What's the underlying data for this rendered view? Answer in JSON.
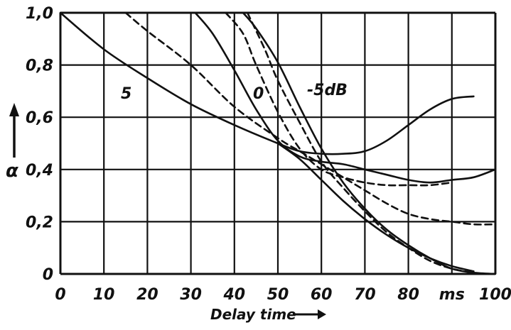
{
  "chart_data": {
    "type": "line",
    "xlabel": "Delay time",
    "ylabel": "α",
    "x_unit_label": "ms",
    "xlim": [
      0,
      100
    ],
    "ylim": [
      0,
      1.0
    ],
    "grid": true,
    "x_ticks": [
      "0",
      "10",
      "20",
      "30",
      "40",
      "50",
      "60",
      "70",
      "80",
      "ms",
      "100"
    ],
    "y_ticks": [
      "0",
      "0,2",
      "0,4",
      "0,6",
      "0,8",
      "1,0"
    ],
    "annotations": [
      "5",
      "0",
      "-5dB"
    ],
    "series": [
      {
        "name": "5",
        "style": "solid",
        "x": [
          0,
          10,
          20,
          30,
          40,
          50,
          55,
          60,
          65,
          70,
          75,
          80,
          85,
          90,
          95
        ],
        "y": [
          1.0,
          0.86,
          0.75,
          0.65,
          0.57,
          0.5,
          0.47,
          0.46,
          0.46,
          0.47,
          0.51,
          0.57,
          0.63,
          0.67,
          0.68
        ]
      },
      {
        "name": "5",
        "style": "dashed",
        "x": [
          15,
          20,
          30,
          40,
          50,
          55,
          60,
          65,
          70,
          75,
          80,
          85,
          90,
          95,
          100
        ],
        "y": [
          1.0,
          0.93,
          0.8,
          0.64,
          0.52,
          0.47,
          0.42,
          0.37,
          0.32,
          0.27,
          0.23,
          0.21,
          0.2,
          0.19,
          0.19
        ]
      },
      {
        "name": "0",
        "style": "solid",
        "x": [
          31,
          35,
          40,
          45,
          50,
          55,
          60,
          65,
          70,
          75,
          80,
          85,
          90,
          95,
          100
        ],
        "y": [
          1.0,
          0.92,
          0.78,
          0.63,
          0.51,
          0.45,
          0.43,
          0.42,
          0.4,
          0.38,
          0.36,
          0.35,
          0.36,
          0.37,
          0.4
        ]
      },
      {
        "name": "0",
        "style": "dashed",
        "x": [
          38,
          42,
          45,
          50,
          55,
          60,
          65,
          70,
          75,
          80,
          85,
          90
        ],
        "y": [
          1.0,
          0.92,
          0.8,
          0.62,
          0.48,
          0.4,
          0.37,
          0.35,
          0.34,
          0.34,
          0.34,
          0.35
        ]
      },
      {
        "name": "-5dB",
        "style": "solid",
        "x": [
          42,
          45,
          50,
          55,
          60,
          65,
          70,
          75,
          80,
          85,
          90,
          95,
          100
        ],
        "y": [
          1.0,
          0.94,
          0.81,
          0.64,
          0.48,
          0.35,
          0.25,
          0.17,
          0.11,
          0.06,
          0.02,
          0.005,
          0.0
        ]
      },
      {
        "name": "-5dB",
        "style": "dashed",
        "x": [
          43,
          47,
          50,
          55,
          60,
          65,
          70,
          75,
          80,
          85,
          90,
          95
        ],
        "y": [
          1.0,
          0.86,
          0.74,
          0.58,
          0.43,
          0.33,
          0.24,
          0.16,
          0.1,
          0.05,
          0.02,
          0.005
        ]
      },
      {
        "name": "",
        "style": "solid",
        "x": [
          50,
          55,
          60,
          65,
          70,
          75,
          80,
          85,
          90,
          95
        ],
        "y": [
          0.5,
          0.44,
          0.36,
          0.28,
          0.21,
          0.15,
          0.1,
          0.06,
          0.03,
          0.01
        ]
      }
    ]
  }
}
